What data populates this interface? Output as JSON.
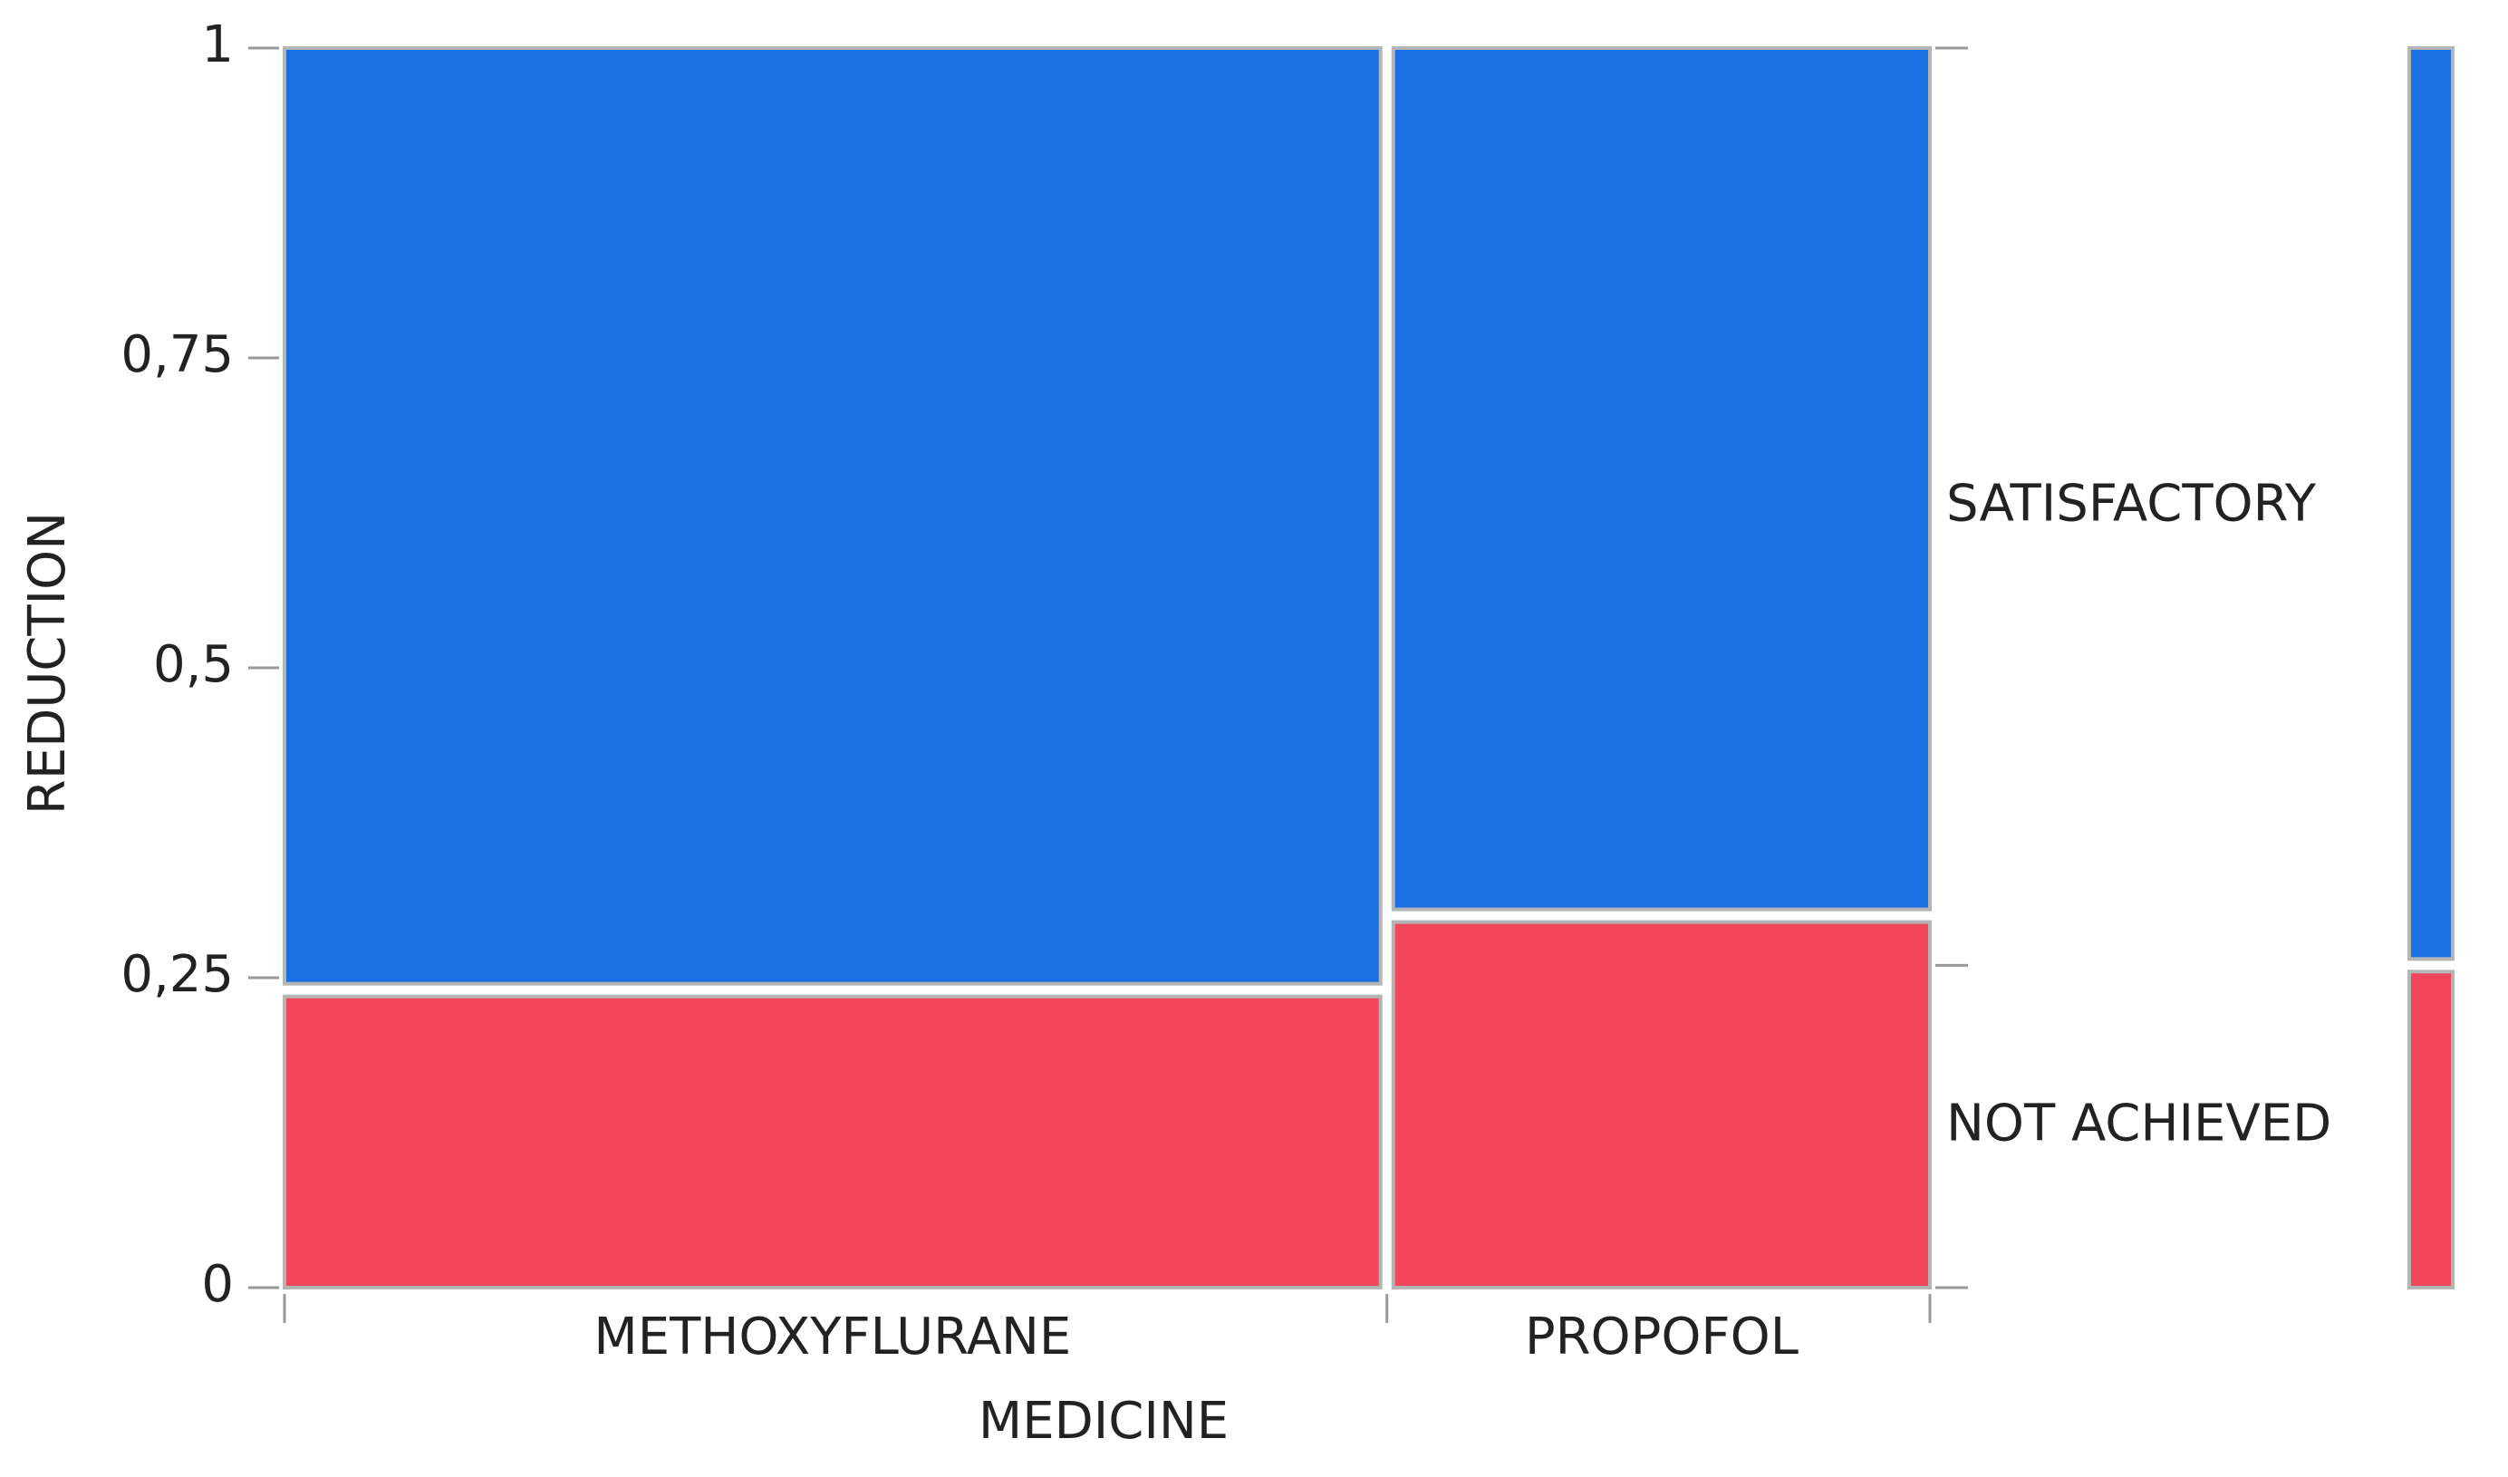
{
  "chart_data": {
    "type": "mosaic",
    "x_label": "MEDICINE",
    "y_label": "REDUCTION",
    "categories": [
      "METHOXYFLURANE",
      "PROPOFOL"
    ],
    "category_shares": [
      0.67,
      0.33
    ],
    "series": [
      {
        "name": "NOT ACHIEVED",
        "color": "#f2465a",
        "values": [
          0.24,
          0.3
        ],
        "overall": 0.26
      },
      {
        "name": "SATISFACTORY",
        "color": "#1a6fe3",
        "values": [
          0.76,
          0.7
        ],
        "overall": 0.74
      }
    ],
    "ylim": [
      0,
      1
    ],
    "yticks": [
      0,
      {
        "value": 0.25,
        "label": "0,25"
      },
      {
        "value": 0.5,
        "label": "0,5"
      },
      {
        "value": 0.75,
        "label": "0,75"
      },
      1
    ]
  }
}
